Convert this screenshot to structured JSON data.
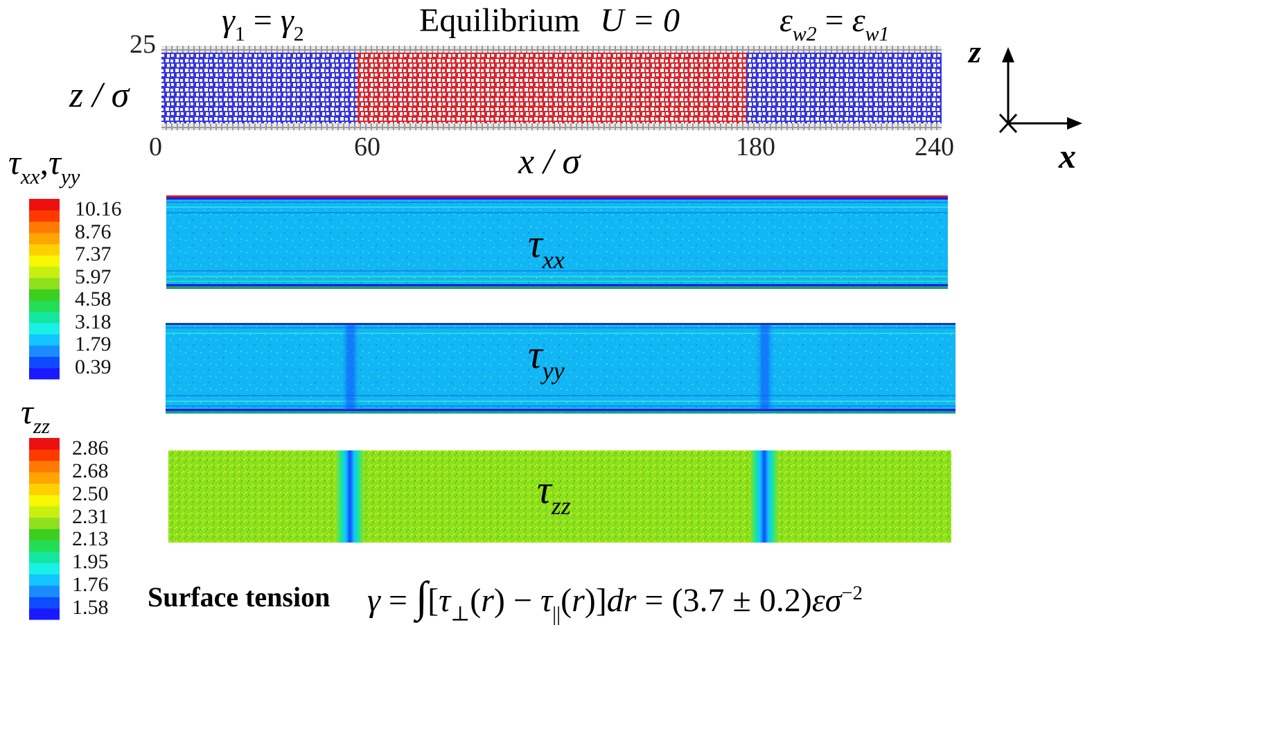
{
  "top": {
    "left_label": "γ1 = γ2",
    "center_label": "Equilibrium",
    "velocity_label": "U = 0",
    "right_label": "εw2 = εw1",
    "z_tick_top": "25",
    "x_ticks": [
      "0",
      "60",
      "180",
      "240"
    ],
    "y_axis_label": "z / σ",
    "x_axis_label": "x / σ",
    "regions": [
      {
        "x_start": 0,
        "x_end": 60,
        "fluid": "blue"
      },
      {
        "x_start": 60,
        "x_end": 180,
        "fluid": "red"
      },
      {
        "x_start": 180,
        "x_end": 240,
        "fluid": "blue"
      }
    ],
    "colors": {
      "fluid1": "#2a2ad8",
      "fluid2": "#d8262e",
      "wall": "#b9b9b9"
    }
  },
  "axes_icon": {
    "z": "z",
    "x": "x"
  },
  "colorbar1": {
    "title": "τxx, τyy",
    "values": [
      "10.16",
      "8.76",
      "7.37",
      "5.97",
      "4.58",
      "3.18",
      "1.79",
      "0.39"
    ]
  },
  "colorbar2": {
    "title": "τzz",
    "values": [
      "2.86",
      "2.68",
      "2.50",
      "2.31",
      "2.13",
      "1.95",
      "1.76",
      "1.58"
    ]
  },
  "colormap": [
    "#1a1aff",
    "#0f4cff",
    "#1a8cff",
    "#12c4ff",
    "#19f0e6",
    "#14e6a0",
    "#22dd55",
    "#3ccf1e",
    "#8fe01e",
    "#c8ef10",
    "#f6f700",
    "#ffd000",
    "#ffa400",
    "#ff7a00",
    "#ff3a00",
    "#ee1010"
  ],
  "panels": [
    {
      "label": "τxx",
      "symbol": "τ",
      "subscript": "xx"
    },
    {
      "label": "τyy",
      "symbol": "τ",
      "subscript": "yy"
    },
    {
      "label": "τzz",
      "symbol": "τ",
      "subscript": "zz"
    }
  ],
  "footer": {
    "label": "Surface tension",
    "formula": "γ = ∫[τ⊥(r) − τ||(r)]dr = (3.7 ± 0.2)εσ−2"
  }
}
